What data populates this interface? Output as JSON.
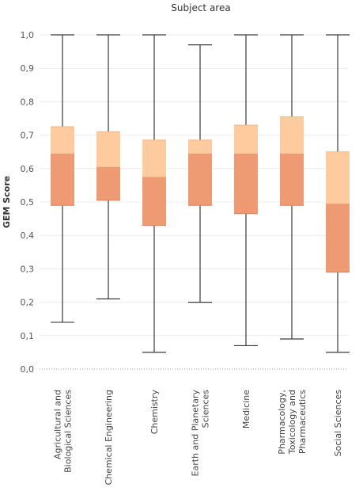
{
  "chart_data": {
    "type": "boxplot",
    "title": "Subject area",
    "ylabel": "GEM Score",
    "ylim": [
      0,
      1
    ],
    "yticks": [
      "0,0",
      "0,1",
      "0,2",
      "0,3",
      "0,4",
      "0,5",
      "0,6",
      "0,7",
      "0,8",
      "0,9",
      "1,0"
    ],
    "grid": true,
    "colors": {
      "upper_box": "#FDCB9D",
      "lower_box": "#EE9A72",
      "whisker": "#3a3a3a"
    },
    "categories": [
      {
        "label_lines": [
          "Agricultural and",
          "Biological Sciences"
        ],
        "min": 0.14,
        "q1": 0.49,
        "median": 0.645,
        "q3": 0.725,
        "max": 1.0
      },
      {
        "label_lines": [
          "Chemical Engineering"
        ],
        "min": 0.21,
        "q1": 0.505,
        "median": 0.605,
        "q3": 0.71,
        "max": 1.0
      },
      {
        "label_lines": [
          "Chemistry"
        ],
        "min": 0.05,
        "q1": 0.43,
        "median": 0.575,
        "q3": 0.685,
        "max": 1.0
      },
      {
        "label_lines": [
          "Earth and Planetary",
          "Sciences"
        ],
        "min": 0.2,
        "q1": 0.49,
        "median": 0.645,
        "q3": 0.685,
        "max": 0.97
      },
      {
        "label_lines": [
          "Medicine"
        ],
        "min": 0.07,
        "q1": 0.465,
        "median": 0.645,
        "q3": 0.73,
        "max": 1.0
      },
      {
        "label_lines": [
          "Pharmacology,",
          "Toxicology and",
          "Pharmaceutics"
        ],
        "min": 0.09,
        "q1": 0.49,
        "median": 0.645,
        "q3": 0.755,
        "max": 1.0
      },
      {
        "label_lines": [
          "Social Sciences"
        ],
        "min": 0.05,
        "q1": 0.29,
        "median": 0.495,
        "q3": 0.65,
        "max": 1.0
      }
    ]
  }
}
